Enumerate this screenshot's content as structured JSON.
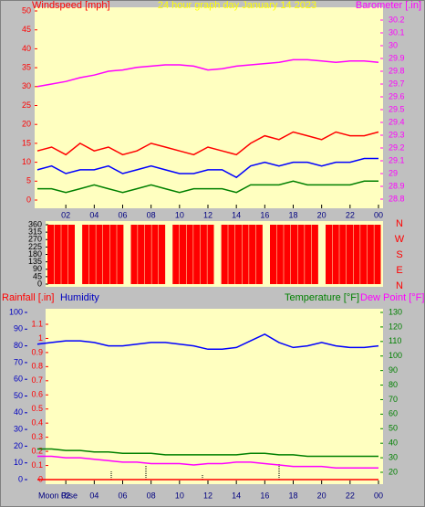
{
  "chart_data": [
    {
      "type": "line",
      "title": "24 hour graph day   January 14 2023",
      "y_label": "Windspeed [mph]",
      "y2_label": "Barometer [.in]",
      "x": [
        0,
        1,
        2,
        3,
        4,
        5,
        6,
        7,
        8,
        9,
        10,
        11,
        12,
        13,
        14,
        15,
        16,
        17,
        18,
        19,
        20,
        21,
        22,
        23,
        24
      ],
      "xlim": [
        0,
        24
      ],
      "xticks": [
        {
          "value": 2,
          "label": "02"
        },
        {
          "value": 4,
          "label": "04"
        },
        {
          "value": 6,
          "label": "06"
        },
        {
          "value": 8,
          "label": "08"
        },
        10,
        12,
        14,
        16,
        18,
        20,
        22,
        {
          "value": 24,
          "label": "00"
        }
      ],
      "ylim": [
        0,
        50
      ],
      "yticks": [
        0,
        5,
        10,
        15,
        20,
        25,
        30,
        35,
        40,
        45,
        50
      ],
      "y2lim": [
        28.8,
        30.2
      ],
      "y2ticks": [
        28.8,
        28.9,
        29,
        29.1,
        29.2,
        29.3,
        29.4,
        29.5,
        29.6,
        29.7,
        29.8,
        29.9,
        30,
        30.1,
        30.2
      ],
      "series": [
        {
          "color": "#ff0000",
          "values": [
            13,
            14,
            12,
            15,
            13,
            14,
            12,
            13,
            15,
            14,
            13,
            12,
            14,
            13,
            12,
            15,
            17,
            16,
            18,
            17,
            16,
            18,
            17,
            17,
            18
          ]
        },
        {
          "color": "#0000ff",
          "values": [
            8,
            9,
            7,
            8,
            8,
            9,
            7,
            8,
            9,
            8,
            7,
            7,
            8,
            8,
            6,
            9,
            10,
            9,
            10,
            10,
            9,
            10,
            10,
            11,
            11
          ]
        },
        {
          "color": "#008000",
          "values": [
            3,
            3,
            2,
            3,
            4,
            3,
            2,
            3,
            4,
            3,
            2,
            3,
            3,
            3,
            2,
            4,
            4,
            4,
            5,
            4,
            4,
            4,
            4,
            5,
            5
          ]
        },
        {
          "color": "#ff00ff",
          "axis": "y2",
          "values": [
            29.68,
            29.7,
            29.72,
            29.75,
            29.77,
            29.8,
            29.81,
            29.83,
            29.84,
            29.85,
            29.85,
            29.84,
            29.81,
            29.82,
            29.84,
            29.85,
            29.86,
            29.87,
            29.89,
            29.89,
            29.88,
            29.87,
            29.88,
            29.88,
            29.87
          ]
        }
      ]
    },
    {
      "type": "bar",
      "xlim": [
        0,
        24
      ],
      "ylim": [
        0,
        360
      ],
      "yticks": [
        0,
        45,
        90,
        135,
        180,
        225,
        270,
        315,
        360
      ],
      "compass_labels": [
        "N",
        "W",
        "S",
        "E",
        "N"
      ],
      "color": "#ff0000",
      "values": [
        360,
        360,
        360,
        360,
        0,
        360,
        360,
        360,
        360,
        360,
        360,
        0,
        360,
        360,
        360,
        360,
        360,
        0,
        360,
        360,
        360,
        360,
        360,
        360,
        0,
        360,
        360,
        360,
        360,
        360,
        360,
        0,
        360,
        360,
        360,
        360,
        360,
        360,
        360,
        0,
        360,
        360,
        360,
        360,
        360,
        360,
        360,
        360
      ]
    },
    {
      "type": "line",
      "y_label": "Rainfall [.in]",
      "humidity_label": "Humidity",
      "y2_label": "Temperature [°F]",
      "y2_label2": "Dew Point [°F]",
      "x_label": "Moon Rise",
      "x": [
        0,
        1,
        2,
        3,
        4,
        5,
        6,
        7,
        8,
        9,
        10,
        11,
        12,
        13,
        14,
        15,
        16,
        17,
        18,
        19,
        20,
        21,
        22,
        23,
        24
      ],
      "xlim": [
        0,
        24
      ],
      "xticks": [
        {
          "value": 2,
          "label": "02"
        },
        {
          "value": 4,
          "label": "04"
        },
        {
          "value": 6,
          "label": "06"
        },
        {
          "value": 8,
          "label": "08"
        },
        10,
        12,
        14,
        16,
        18,
        20,
        22,
        {
          "value": 24,
          "label": "00"
        }
      ],
      "ylim": [
        0,
        1.1
      ],
      "yticks": [
        0,
        0.1,
        0.2,
        0.3,
        0.4,
        0.5,
        0.6,
        0.7,
        0.8,
        0.9,
        1,
        1.1
      ],
      "humidity_lim": [
        0,
        100
      ],
      "humidity_ticks": [
        0,
        10,
        20,
        30,
        40,
        50,
        60,
        70,
        80,
        90,
        100
      ],
      "y2lim": [
        20,
        130
      ],
      "y2ticks": [
        20,
        30,
        40,
        50,
        60,
        70,
        80,
        90,
        100,
        110,
        120,
        130
      ],
      "series": [
        {
          "color": "#ff0000",
          "values": [
            0,
            0,
            0,
            0,
            0,
            0,
            0,
            0,
            0,
            0,
            0,
            0,
            0,
            0,
            0,
            0,
            0,
            0,
            0,
            0,
            0,
            0,
            0,
            0,
            0
          ]
        },
        {
          "color": "#0000ff",
          "axis": "humidity",
          "values": [
            81,
            82,
            83,
            83,
            82,
            80,
            80,
            81,
            82,
            82,
            81,
            80,
            78,
            78,
            79,
            83,
            87,
            82,
            79,
            80,
            82,
            80,
            79,
            79,
            80
          ]
        },
        {
          "color": "#008000",
          "axis": "y2",
          "values": [
            36,
            36,
            35,
            35,
            34,
            34,
            33,
            33,
            33,
            32,
            32,
            32,
            32,
            32,
            32,
            33,
            33,
            32,
            32,
            31,
            31,
            31,
            31,
            31,
            31
          ]
        },
        {
          "color": "#ff00ff",
          "axis": "y2",
          "values": [
            31,
            31,
            30,
            30,
            29,
            28,
            27,
            27,
            26,
            26,
            26,
            25,
            26,
            26,
            27,
            27,
            26,
            25,
            24,
            24,
            24,
            23,
            23,
            23,
            23
          ]
        }
      ]
    }
  ]
}
